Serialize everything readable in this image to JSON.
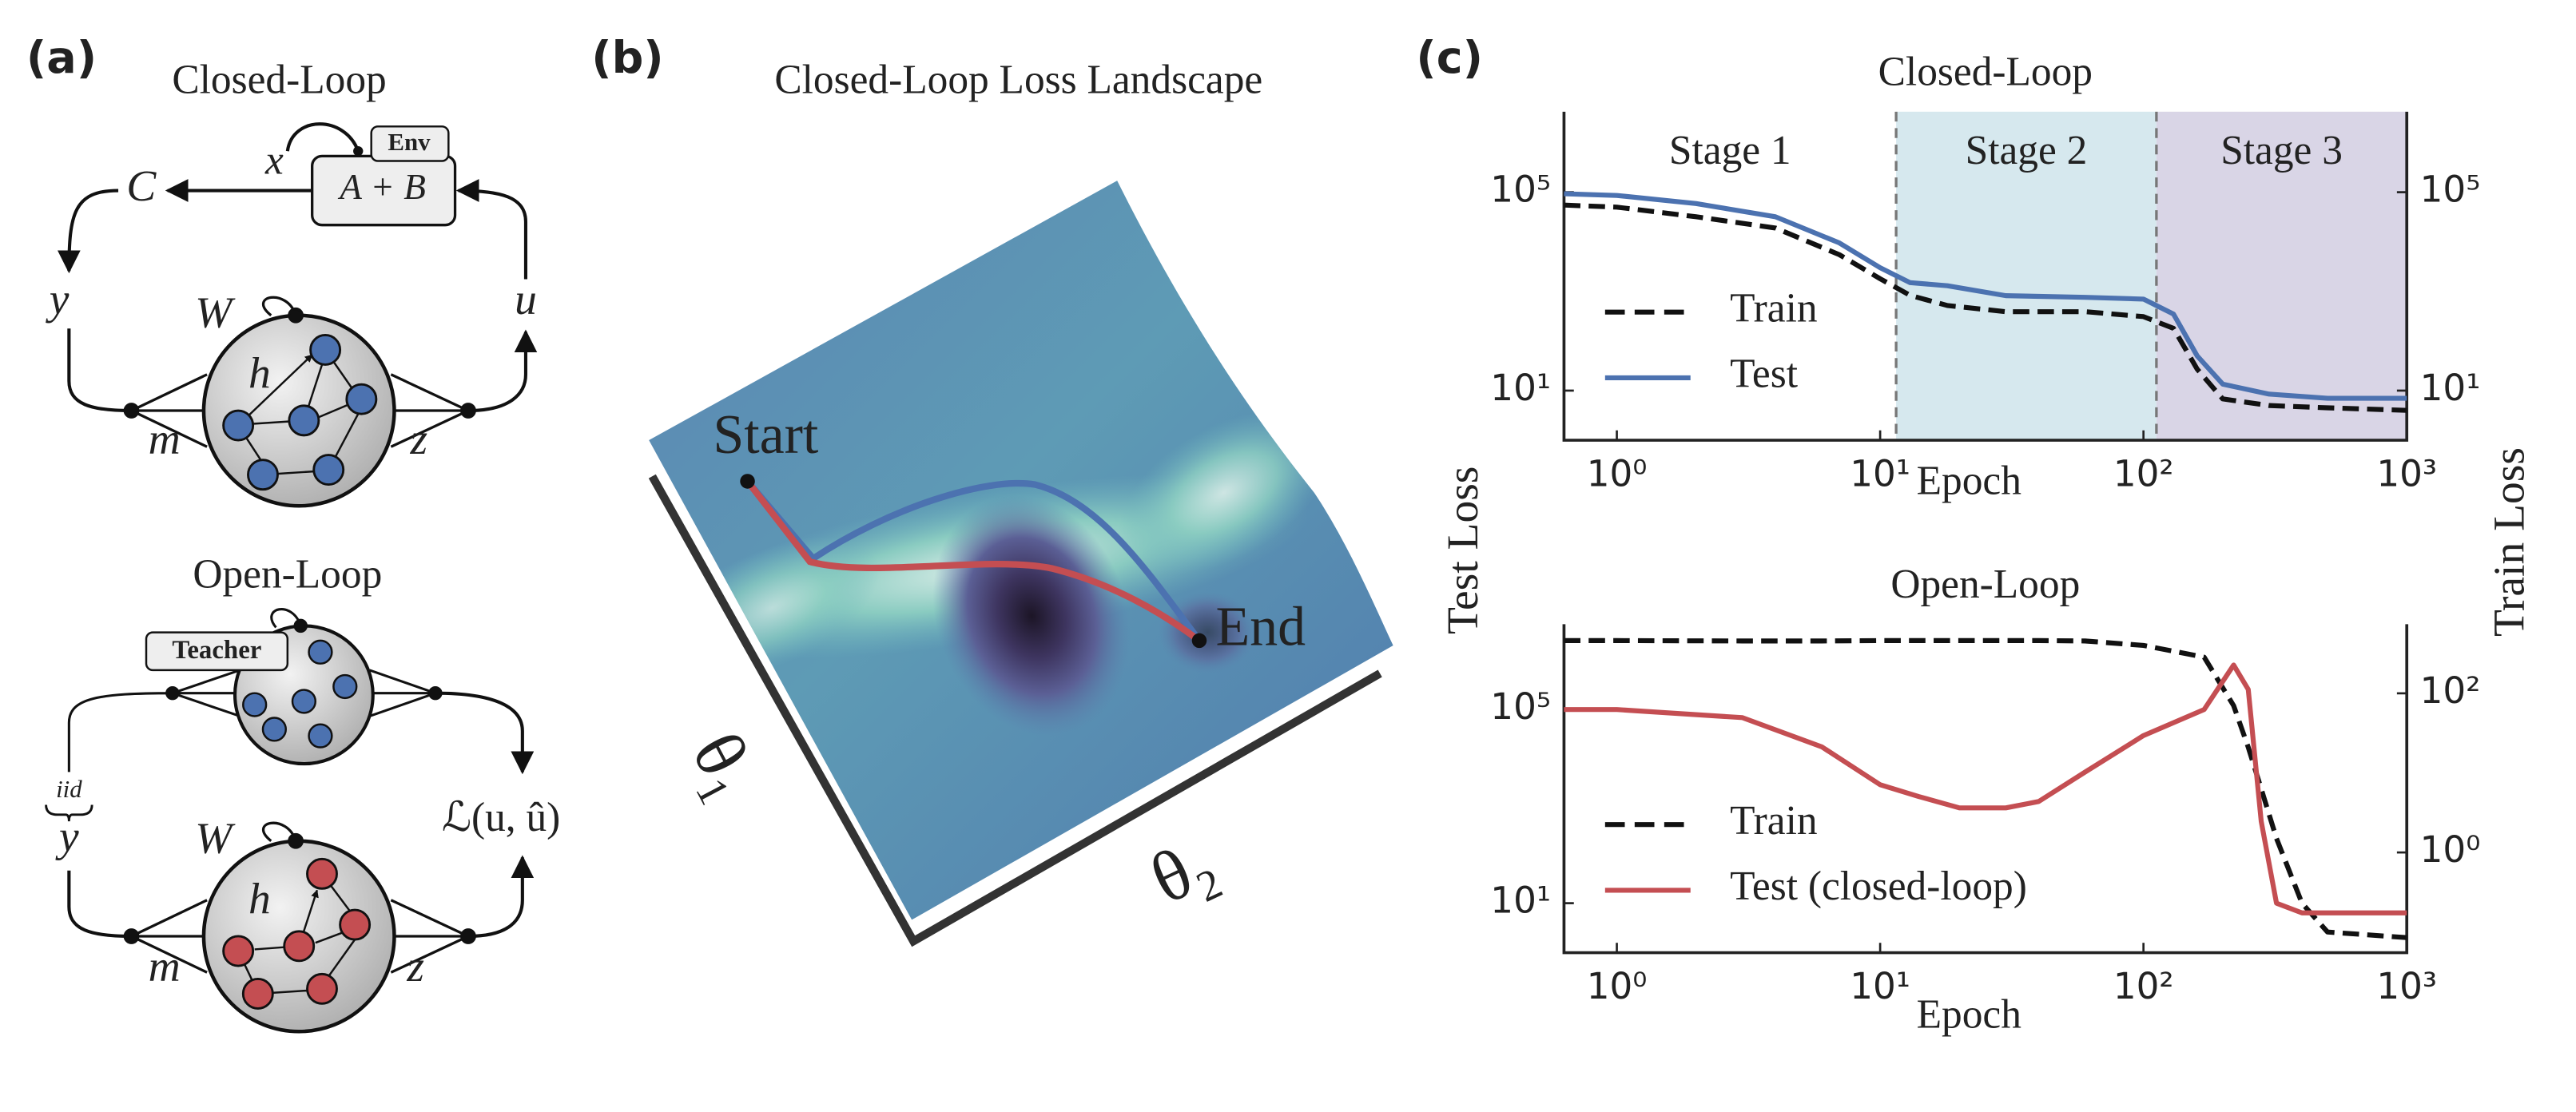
{
  "panel_a": {
    "label": "(a)",
    "closed_loop": {
      "title": "Closed-Loop",
      "env": "Env",
      "plant": "A + B",
      "x": "x",
      "controller": "C",
      "y": "y",
      "u": "u",
      "W": "W",
      "h": "h",
      "m": "m",
      "z": "z"
    },
    "open_loop": {
      "title": "Open-Loop",
      "teacher": "Teacher",
      "iid": "iid",
      "y": "y",
      "loss": "ℒ(u, û)",
      "W": "W",
      "h": "h",
      "m": "m",
      "z": "z"
    }
  },
  "panel_b": {
    "label": "(b)",
    "title": "Closed-Loop Loss Landscape",
    "start": "Start",
    "end": "End",
    "theta1": "θ₁",
    "theta2": "θ₂"
  },
  "panel_c": {
    "label": "(c)",
    "left_axis_label": "Test Loss",
    "right_axis_label": "Train Loss"
  },
  "chart_data": [
    {
      "type": "line",
      "title": "Closed-Loop",
      "xlabel": "Epoch",
      "xscale": "log",
      "yscale": "log",
      "xlim": [
        0.63,
        1000
      ],
      "xticks": [
        {
          "value": 1,
          "label": "10⁰"
        },
        {
          "value": 10,
          "label": "10¹"
        },
        {
          "value": 100,
          "label": "10²"
        },
        {
          "value": 1000,
          "label": "10³"
        }
      ],
      "ylim": [
        1,
        4200000
      ],
      "yticks": [
        {
          "value": 10,
          "label": "10¹"
        },
        {
          "value": 100000,
          "label": "10⁵"
        }
      ],
      "y2lim": [
        1,
        4200000
      ],
      "y2ticks": [
        {
          "value": 10,
          "label": "10¹"
        },
        {
          "value": 100000,
          "label": "10⁵"
        }
      ],
      "stages": [
        "Stage 1",
        "Stage 2",
        "Stage 3"
      ],
      "stage_boundaries": [
        11.5,
        112
      ],
      "stage_colors": [
        "#ffffff",
        "#d6e8ee",
        "#d9d5e6"
      ],
      "legend": "lower left",
      "x": [
        0.63,
        1,
        2,
        4,
        7,
        10,
        13,
        18,
        30,
        60,
        100,
        130,
        160,
        200,
        300,
        500,
        1000
      ],
      "series": [
        {
          "name": "Train",
          "color": "#111111",
          "linestyle": "dashed",
          "axis": "y2",
          "values": [
            55000,
            50000,
            32000,
            19000,
            5500,
            1800,
            830,
            520,
            390,
            390,
            310,
            180,
            27,
            6.8,
            5,
            4.5,
            4
          ]
        },
        {
          "name": "Test",
          "color": "#4c72b0",
          "linestyle": "solid",
          "values": [
            93000,
            86000,
            59000,
            32000,
            9500,
            3000,
            1500,
            1300,
            820,
            760,
            700,
            350,
            50,
            13.5,
            8.5,
            7,
            7
          ]
        }
      ]
    },
    {
      "type": "line",
      "title": "Open-Loop",
      "xlabel": "Epoch",
      "xscale": "log",
      "yscale": "log",
      "xlim": [
        0.63,
        1000
      ],
      "xticks": [
        {
          "value": 1,
          "label": "10⁰"
        },
        {
          "value": 10,
          "label": "10¹"
        },
        {
          "value": 100,
          "label": "10²"
        },
        {
          "value": 1000,
          "label": "10³"
        }
      ],
      "ylim": [
        0.95,
        5800000
      ],
      "yticks": [
        {
          "value": 10,
          "label": "10¹"
        },
        {
          "value": 100000,
          "label": "10⁵"
        }
      ],
      "y2lim": [
        0.055,
        740
      ],
      "y2ticks": [
        {
          "value": 1,
          "label": "10⁰"
        },
        {
          "value": 100,
          "label": "10²"
        }
      ],
      "legend": "lower left",
      "x": [
        0.63,
        1,
        3,
        6,
        10,
        14,
        20,
        30,
        40,
        60,
        100,
        170,
        220,
        250,
        280,
        320,
        400,
        500,
        1000
      ],
      "series": [
        {
          "name": "Train",
          "color": "#111111",
          "linestyle": "dashed",
          "axis": "y2",
          "values": [
            460,
            460,
            455,
            455,
            460,
            460,
            460,
            460,
            460,
            455,
            400,
            285,
            70,
            21,
            6.3,
            1.5,
            0.23,
            0.1,
            0.085
          ]
        },
        {
          "name": "Test (closed-loop)",
          "color": "#c44e52",
          "linestyle": "solid",
          "values": [
            100000,
            100000,
            68000,
            17000,
            2800,
            1600,
            930,
            930,
            1260,
            5100,
            29000,
            100000,
            830000,
            260000,
            490,
            10,
            6.3,
            6.3,
            6.3
          ]
        }
      ]
    }
  ]
}
